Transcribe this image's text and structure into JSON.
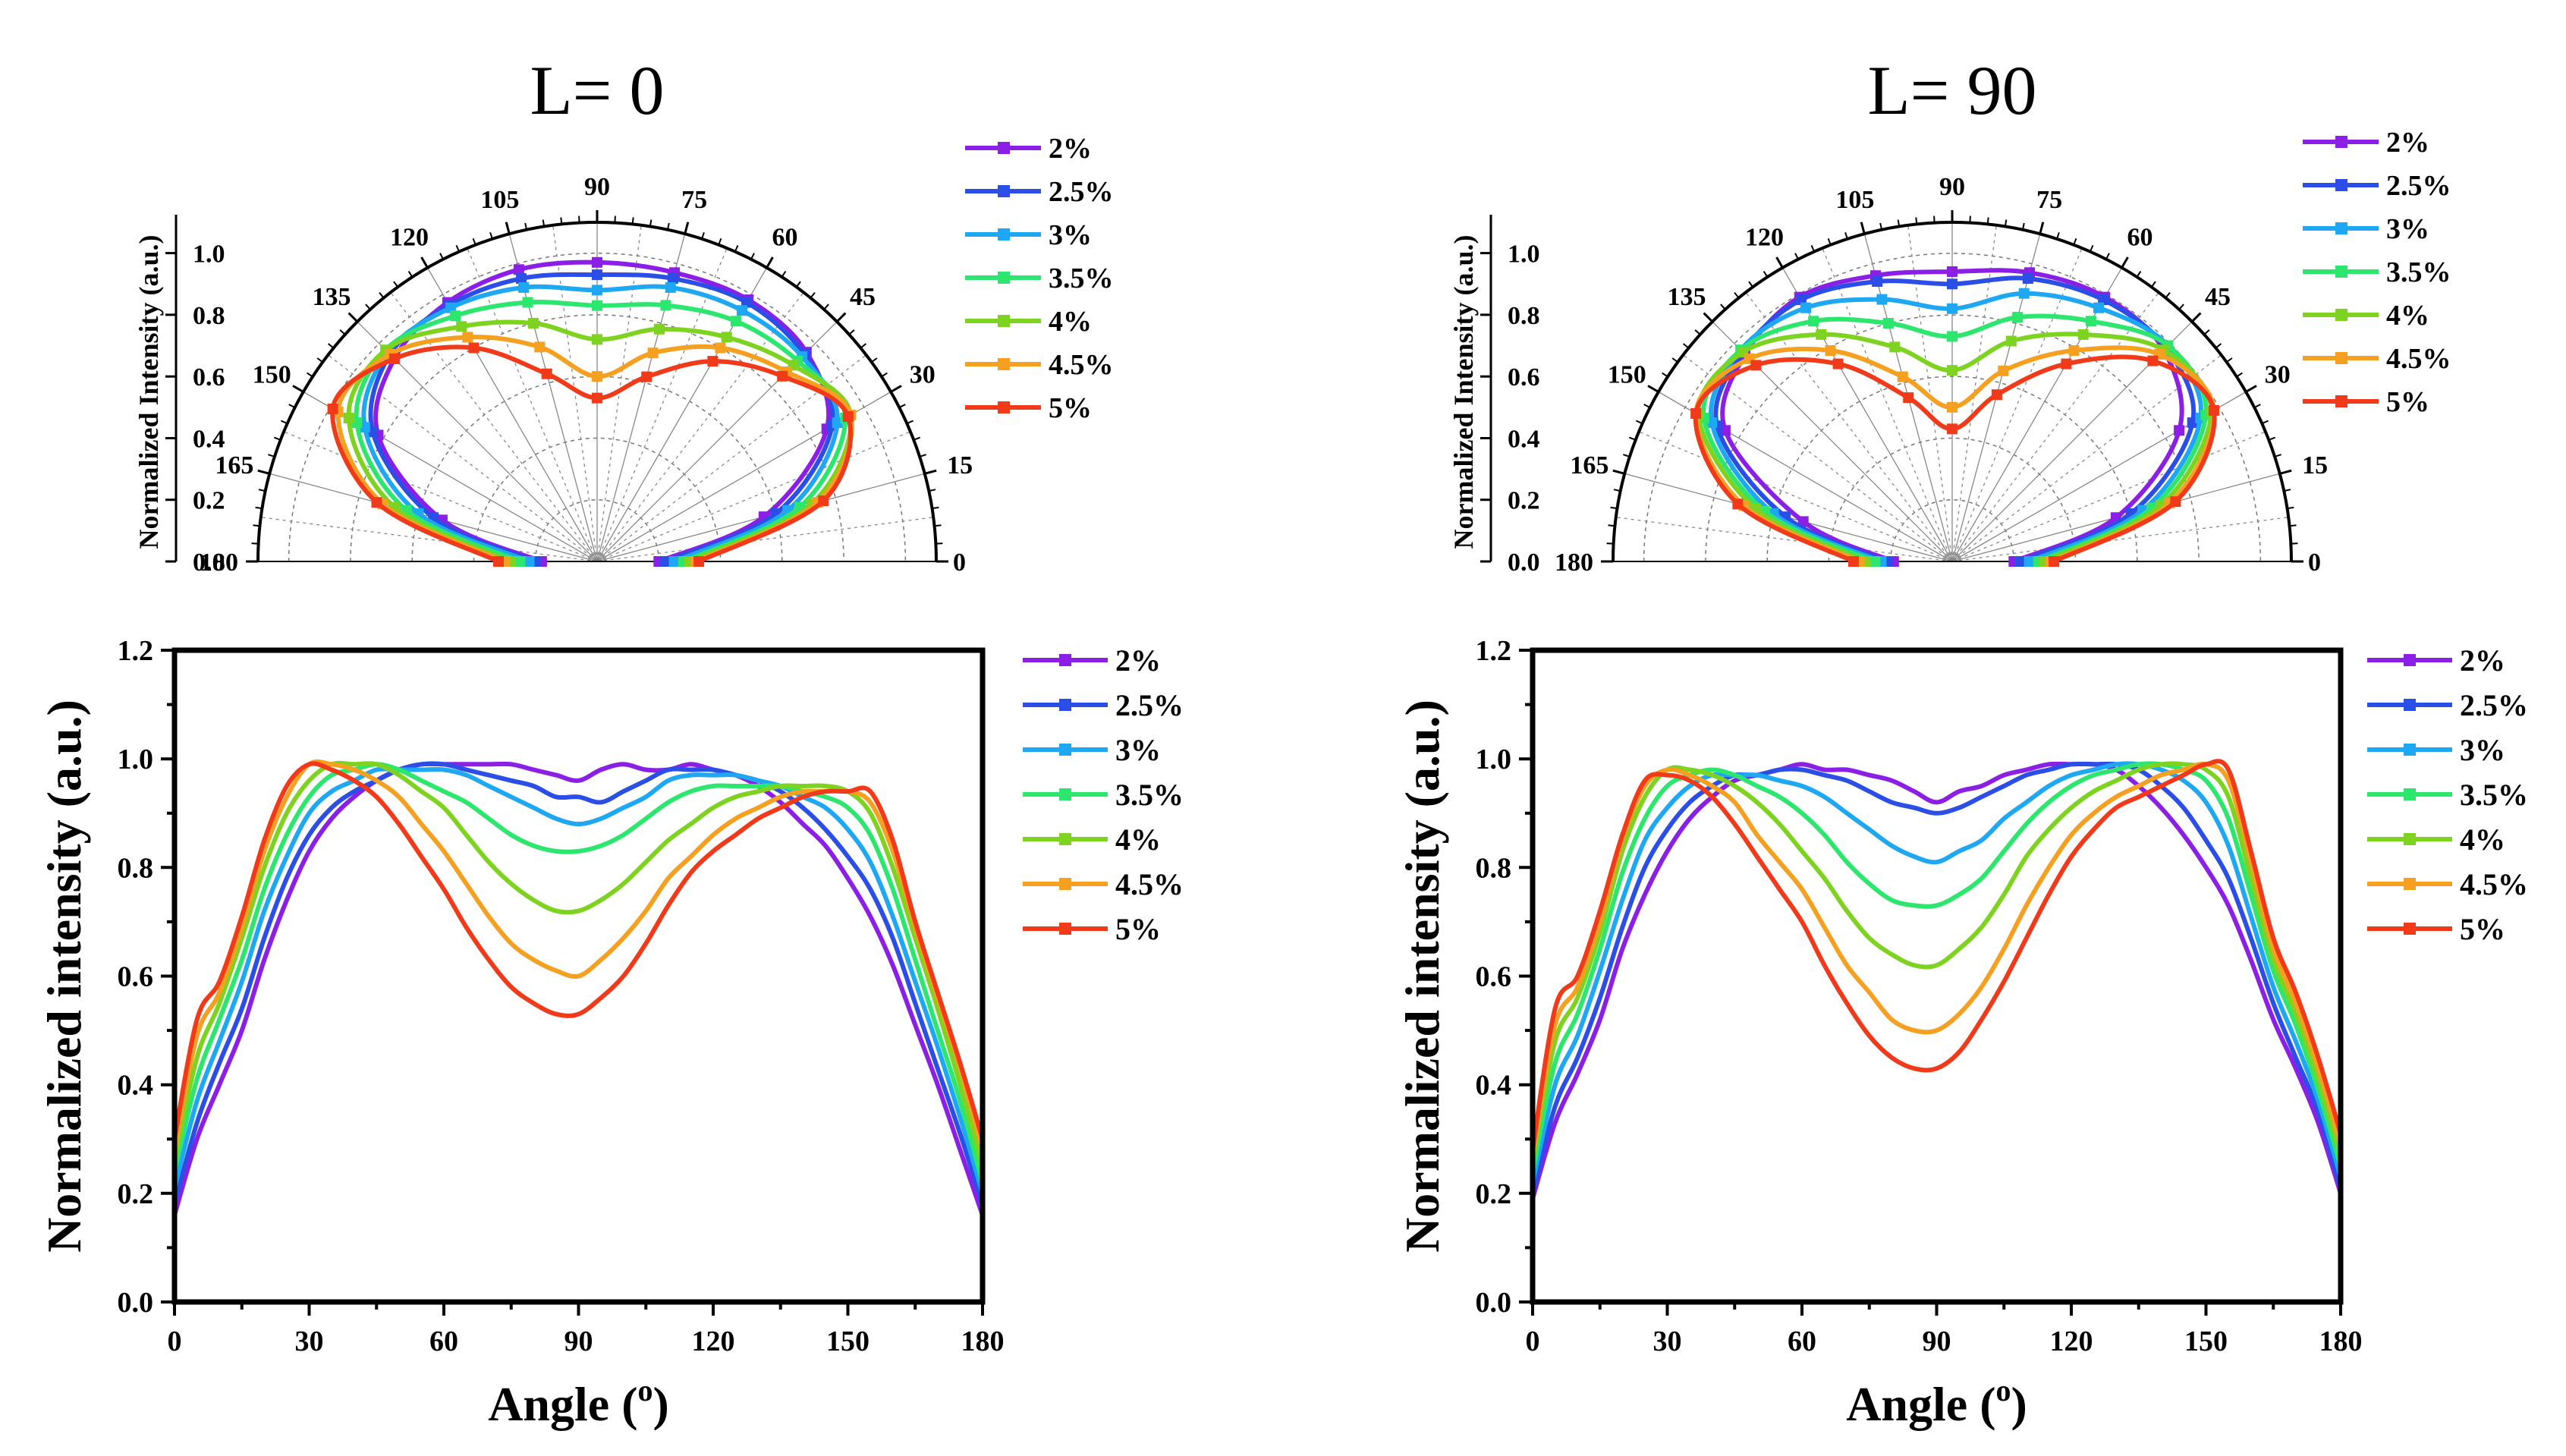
{
  "figure": {
    "left_title": "L= 0",
    "right_title": "L= 90",
    "polar_ylabel": "Normalized Intensity (a.u.)",
    "cart_ylabel": "Normalized intensity (a.u.)",
    "cart_xlabel": "Angle (",
    "cart_xlabel_sup": "o",
    "cart_xlabel_end": ")"
  },
  "series_colors": [
    "#8B1FE6",
    "#2B4FE6",
    "#1EA7F2",
    "#2CE66E",
    "#7ED321",
    "#F5A020",
    "#F03A1A"
  ],
  "legend_labels": [
    "2%",
    "2.5%",
    "3%",
    "3.5%",
    "4%",
    "4.5%",
    "5%"
  ],
  "chart_data": [
    {
      "type": "polar",
      "panel": "L=0",
      "title": "L= 0",
      "ylabel": "Normalized Intensity (a.u.)",
      "theta_range": [
        0,
        180
      ],
      "r_range": [
        0,
        1.1
      ],
      "theta_ticks": [
        "0",
        "15",
        "30",
        "45",
        "60",
        "75",
        "90",
        "105",
        "120",
        "135",
        "150",
        "165",
        "180"
      ],
      "r_ticks": [
        "0.0",
        "0.2",
        "0.4",
        "0.6",
        "0.8",
        "1.0"
      ],
      "angles": [
        0,
        15,
        30,
        45,
        60,
        75,
        90,
        105,
        120,
        135,
        150,
        165,
        180
      ],
      "series": [
        {
          "name": "2%",
          "values": [
            0.2,
            0.56,
            0.86,
            0.96,
            0.98,
            0.97,
            0.97,
            0.98,
            0.97,
            0.93,
            0.82,
            0.52,
            0.18
          ]
        },
        {
          "name": "2.5%",
          "values": [
            0.22,
            0.6,
            0.88,
            0.95,
            0.97,
            0.95,
            0.93,
            0.95,
            0.96,
            0.95,
            0.84,
            0.55,
            0.2
          ]
        },
        {
          "name": "3%",
          "values": [
            0.25,
            0.64,
            0.9,
            0.94,
            0.94,
            0.92,
            0.88,
            0.92,
            0.95,
            0.96,
            0.87,
            0.6,
            0.22
          ]
        },
        {
          "name": "3.5%",
          "values": [
            0.28,
            0.68,
            0.93,
            0.92,
            0.9,
            0.86,
            0.83,
            0.87,
            0.92,
            0.97,
            0.9,
            0.64,
            0.25
          ]
        },
        {
          "name": "4%",
          "values": [
            0.3,
            0.72,
            0.95,
            0.9,
            0.84,
            0.78,
            0.72,
            0.8,
            0.88,
            0.97,
            0.93,
            0.68,
            0.28
          ]
        },
        {
          "name": "4.5%",
          "values": [
            0.32,
            0.74,
            0.95,
            0.87,
            0.8,
            0.7,
            0.6,
            0.72,
            0.84,
            0.95,
            0.97,
            0.72,
            0.3
          ]
        },
        {
          "name": "5%",
          "values": [
            0.33,
            0.76,
            0.94,
            0.85,
            0.75,
            0.62,
            0.53,
            0.63,
            0.8,
            0.93,
            0.99,
            0.74,
            0.32
          ]
        }
      ]
    },
    {
      "type": "polar",
      "panel": "L=90",
      "title": "L= 90",
      "ylabel": "Normalized Intensity (a.u.)",
      "theta_range": [
        0,
        180
      ],
      "r_range": [
        0,
        1.1
      ],
      "theta_ticks": [
        "0",
        "15",
        "30",
        "45",
        "60",
        "75",
        "90",
        "105",
        "120",
        "135",
        "150",
        "165",
        "180"
      ],
      "r_ticks": [
        "0.0",
        "0.2",
        "0.4",
        "0.6",
        "0.8",
        "1.0"
      ],
      "angles": [
        0,
        15,
        30,
        45,
        60,
        75,
        90,
        105,
        120,
        135,
        150,
        165,
        180
      ],
      "series": [
        {
          "name": "2%",
          "values": [
            0.2,
            0.55,
            0.85,
            0.97,
            0.99,
            0.97,
            0.94,
            0.96,
            0.99,
            0.95,
            0.85,
            0.5,
            0.19
          ]
        },
        {
          "name": "2.5%",
          "values": [
            0.22,
            0.6,
            0.9,
            0.98,
            0.98,
            0.95,
            0.9,
            0.94,
            0.98,
            0.96,
            0.88,
            0.56,
            0.21
          ]
        },
        {
          "name": "3%",
          "values": [
            0.25,
            0.64,
            0.93,
            0.99,
            0.95,
            0.9,
            0.82,
            0.88,
            0.95,
            0.97,
            0.9,
            0.6,
            0.23
          ]
        },
        {
          "name": "3.5%",
          "values": [
            0.28,
            0.67,
            0.95,
            0.99,
            0.9,
            0.82,
            0.73,
            0.8,
            0.9,
            0.97,
            0.93,
            0.63,
            0.25
          ]
        },
        {
          "name": "4%",
          "values": [
            0.3,
            0.7,
            0.97,
            0.97,
            0.85,
            0.74,
            0.62,
            0.72,
            0.85,
            0.96,
            0.95,
            0.66,
            0.28
          ]
        },
        {
          "name": "4.5%",
          "values": [
            0.32,
            0.73,
            0.98,
            0.95,
            0.79,
            0.64,
            0.5,
            0.62,
            0.79,
            0.93,
            0.96,
            0.7,
            0.3
          ]
        },
        {
          "name": "5%",
          "values": [
            0.33,
            0.75,
            0.98,
            0.92,
            0.74,
            0.56,
            0.43,
            0.55,
            0.74,
            0.9,
            0.96,
            0.72,
            0.32
          ]
        }
      ]
    },
    {
      "type": "line",
      "panel": "L=0",
      "xlabel": "Angle (o)",
      "ylabel": "Normalized intensity (a.u.)",
      "xlim": [
        0,
        180
      ],
      "ylim": [
        0,
        1.2
      ],
      "x_ticks": [
        "0",
        "30",
        "60",
        "90",
        "120",
        "150",
        "180"
      ],
      "y_ticks": [
        "0.0",
        "0.2",
        "0.4",
        "0.6",
        "0.8",
        "1.0",
        "1.2"
      ],
      "x": [
        0,
        5,
        10,
        15,
        20,
        25,
        30,
        35,
        40,
        45,
        50,
        55,
        60,
        65,
        70,
        75,
        80,
        85,
        90,
        95,
        100,
        105,
        110,
        115,
        120,
        125,
        130,
        135,
        140,
        145,
        150,
        155,
        160,
        165,
        170,
        175,
        180
      ],
      "series": [
        {
          "name": "2%",
          "values": [
            0.16,
            0.3,
            0.4,
            0.5,
            0.63,
            0.74,
            0.83,
            0.89,
            0.93,
            0.96,
            0.98,
            0.99,
            0.99,
            0.99,
            0.99,
            0.99,
            0.98,
            0.97,
            0.96,
            0.98,
            0.99,
            0.98,
            0.98,
            0.99,
            0.98,
            0.97,
            0.95,
            0.92,
            0.88,
            0.84,
            0.78,
            0.71,
            0.62,
            0.51,
            0.4,
            0.28,
            0.16
          ]
        },
        {
          "name": "2.5%",
          "values": [
            0.18,
            0.33,
            0.44,
            0.54,
            0.67,
            0.78,
            0.86,
            0.91,
            0.94,
            0.96,
            0.98,
            0.99,
            0.99,
            0.98,
            0.97,
            0.96,
            0.95,
            0.93,
            0.93,
            0.92,
            0.94,
            0.96,
            0.98,
            0.98,
            0.98,
            0.97,
            0.96,
            0.94,
            0.91,
            0.87,
            0.82,
            0.76,
            0.67,
            0.55,
            0.43,
            0.31,
            0.18
          ]
        },
        {
          "name": "3%",
          "values": [
            0.21,
            0.37,
            0.48,
            0.59,
            0.72,
            0.82,
            0.9,
            0.94,
            0.96,
            0.98,
            0.98,
            0.98,
            0.98,
            0.97,
            0.95,
            0.93,
            0.91,
            0.89,
            0.88,
            0.89,
            0.91,
            0.93,
            0.96,
            0.97,
            0.97,
            0.97,
            0.96,
            0.95,
            0.93,
            0.91,
            0.87,
            0.81,
            0.71,
            0.59,
            0.47,
            0.34,
            0.2
          ]
        },
        {
          "name": "3.5%",
          "values": [
            0.24,
            0.41,
            0.52,
            0.63,
            0.76,
            0.86,
            0.93,
            0.97,
            0.98,
            0.99,
            0.98,
            0.96,
            0.94,
            0.92,
            0.89,
            0.86,
            0.84,
            0.83,
            0.83,
            0.84,
            0.86,
            0.89,
            0.92,
            0.94,
            0.95,
            0.95,
            0.95,
            0.95,
            0.94,
            0.93,
            0.91,
            0.86,
            0.76,
            0.63,
            0.5,
            0.37,
            0.22
          ]
        },
        {
          "name": "4%",
          "values": [
            0.26,
            0.45,
            0.55,
            0.67,
            0.8,
            0.9,
            0.96,
            0.99,
            0.99,
            0.99,
            0.97,
            0.94,
            0.91,
            0.86,
            0.81,
            0.77,
            0.74,
            0.72,
            0.72,
            0.74,
            0.77,
            0.81,
            0.85,
            0.88,
            0.91,
            0.93,
            0.94,
            0.95,
            0.95,
            0.95,
            0.94,
            0.9,
            0.8,
            0.67,
            0.54,
            0.4,
            0.25
          ]
        },
        {
          "name": "4.5%",
          "values": [
            0.28,
            0.49,
            0.57,
            0.69,
            0.83,
            0.93,
            0.99,
            0.99,
            0.98,
            0.96,
            0.93,
            0.88,
            0.83,
            0.77,
            0.71,
            0.66,
            0.63,
            0.61,
            0.6,
            0.63,
            0.67,
            0.72,
            0.78,
            0.82,
            0.86,
            0.89,
            0.91,
            0.93,
            0.94,
            0.94,
            0.94,
            0.92,
            0.83,
            0.69,
            0.56,
            0.43,
            0.28
          ]
        },
        {
          "name": "5%",
          "values": [
            0.3,
            0.52,
            0.59,
            0.71,
            0.85,
            0.95,
            0.99,
            0.98,
            0.96,
            0.93,
            0.88,
            0.82,
            0.76,
            0.69,
            0.63,
            0.58,
            0.55,
            0.53,
            0.53,
            0.56,
            0.6,
            0.66,
            0.73,
            0.79,
            0.83,
            0.86,
            0.89,
            0.91,
            0.93,
            0.94,
            0.94,
            0.94,
            0.85,
            0.7,
            0.57,
            0.44,
            0.3
          ]
        }
      ]
    },
    {
      "type": "line",
      "panel": "L=90",
      "xlabel": "Angle (o)",
      "ylabel": "Normalized intensity (a.u.)",
      "xlim": [
        0,
        180
      ],
      "ylim": [
        0,
        1.2
      ],
      "x_ticks": [
        "0",
        "30",
        "60",
        "90",
        "120",
        "150",
        "180"
      ],
      "y_ticks": [
        "0.0",
        "0.2",
        "0.4",
        "0.6",
        "0.8",
        "1.0",
        "1.2"
      ],
      "x": [
        0,
        5,
        10,
        15,
        20,
        25,
        30,
        35,
        40,
        45,
        50,
        55,
        60,
        65,
        70,
        75,
        80,
        85,
        90,
        95,
        100,
        105,
        110,
        115,
        120,
        125,
        130,
        135,
        140,
        145,
        150,
        155,
        160,
        165,
        170,
        175,
        180
      ],
      "series": [
        {
          "name": "2%",
          "values": [
            0.19,
            0.33,
            0.42,
            0.52,
            0.65,
            0.75,
            0.83,
            0.89,
            0.93,
            0.96,
            0.97,
            0.98,
            0.99,
            0.98,
            0.98,
            0.97,
            0.96,
            0.94,
            0.92,
            0.94,
            0.95,
            0.97,
            0.98,
            0.99,
            0.99,
            0.99,
            0.98,
            0.95,
            0.91,
            0.86,
            0.8,
            0.73,
            0.63,
            0.52,
            0.43,
            0.33,
            0.2
          ]
        },
        {
          "name": "2.5%",
          "values": [
            0.2,
            0.36,
            0.45,
            0.56,
            0.69,
            0.8,
            0.87,
            0.92,
            0.95,
            0.97,
            0.97,
            0.98,
            0.98,
            0.97,
            0.96,
            0.94,
            0.92,
            0.91,
            0.9,
            0.91,
            0.93,
            0.95,
            0.97,
            0.98,
            0.99,
            0.99,
            0.99,
            0.98,
            0.95,
            0.91,
            0.85,
            0.78,
            0.67,
            0.55,
            0.45,
            0.35,
            0.21
          ]
        },
        {
          "name": "3%",
          "values": [
            0.22,
            0.4,
            0.49,
            0.61,
            0.74,
            0.85,
            0.91,
            0.95,
            0.97,
            0.97,
            0.97,
            0.96,
            0.95,
            0.93,
            0.9,
            0.87,
            0.84,
            0.82,
            0.81,
            0.83,
            0.85,
            0.89,
            0.92,
            0.95,
            0.97,
            0.98,
            0.99,
            0.99,
            0.98,
            0.96,
            0.92,
            0.84,
            0.71,
            0.58,
            0.48,
            0.37,
            0.23
          ]
        },
        {
          "name": "3.5%",
          "values": [
            0.24,
            0.44,
            0.53,
            0.65,
            0.79,
            0.89,
            0.95,
            0.97,
            0.98,
            0.97,
            0.95,
            0.93,
            0.9,
            0.86,
            0.81,
            0.77,
            0.74,
            0.73,
            0.73,
            0.75,
            0.78,
            0.83,
            0.88,
            0.92,
            0.95,
            0.97,
            0.98,
            0.99,
            0.99,
            0.98,
            0.96,
            0.89,
            0.75,
            0.61,
            0.51,
            0.39,
            0.25
          ]
        },
        {
          "name": "4%",
          "values": [
            0.26,
            0.48,
            0.56,
            0.68,
            0.83,
            0.93,
            0.98,
            0.98,
            0.97,
            0.95,
            0.92,
            0.88,
            0.83,
            0.78,
            0.72,
            0.67,
            0.64,
            0.62,
            0.62,
            0.65,
            0.69,
            0.75,
            0.82,
            0.87,
            0.91,
            0.94,
            0.96,
            0.98,
            0.99,
            0.99,
            0.98,
            0.93,
            0.78,
            0.63,
            0.53,
            0.41,
            0.27
          ]
        },
        {
          "name": "4.5%",
          "values": [
            0.27,
            0.51,
            0.58,
            0.7,
            0.85,
            0.95,
            0.98,
            0.97,
            0.95,
            0.92,
            0.86,
            0.81,
            0.76,
            0.69,
            0.62,
            0.57,
            0.52,
            0.5,
            0.5,
            0.53,
            0.58,
            0.65,
            0.73,
            0.8,
            0.86,
            0.9,
            0.93,
            0.95,
            0.97,
            0.98,
            0.99,
            0.96,
            0.81,
            0.65,
            0.55,
            0.43,
            0.29
          ]
        },
        {
          "name": "5%",
          "values": [
            0.28,
            0.54,
            0.6,
            0.72,
            0.86,
            0.96,
            0.97,
            0.96,
            0.93,
            0.88,
            0.82,
            0.76,
            0.7,
            0.62,
            0.55,
            0.49,
            0.45,
            0.43,
            0.43,
            0.46,
            0.52,
            0.59,
            0.67,
            0.75,
            0.82,
            0.87,
            0.91,
            0.93,
            0.95,
            0.97,
            0.99,
            0.98,
            0.83,
            0.67,
            0.57,
            0.45,
            0.31
          ]
        }
      ]
    }
  ]
}
